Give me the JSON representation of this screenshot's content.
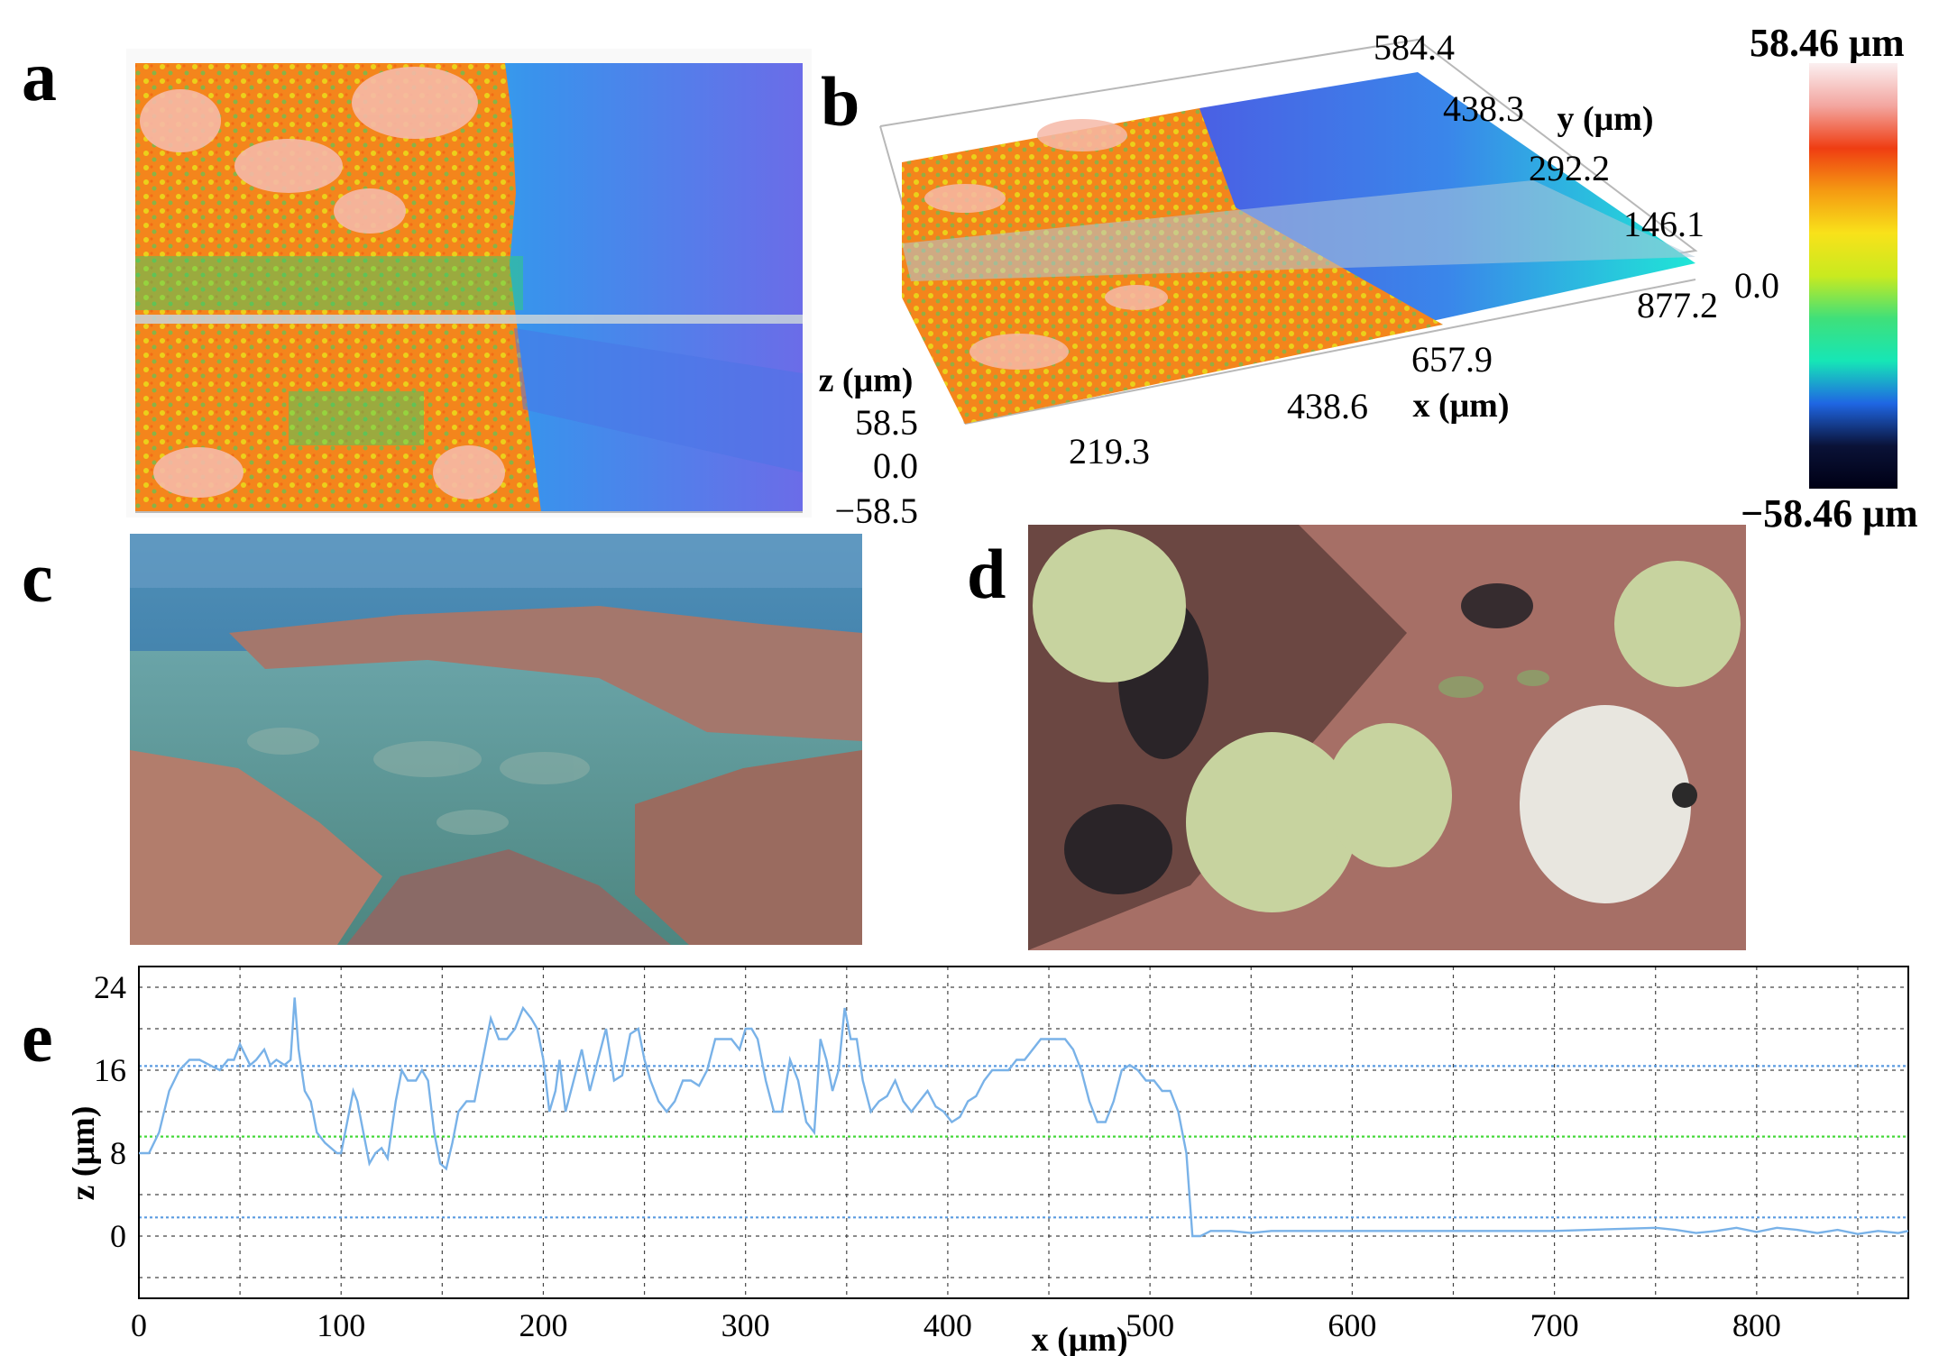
{
  "panels": {
    "a": {
      "letter": "a"
    },
    "b": {
      "letter": "b",
      "y_label": "y (μm)",
      "y_ticks": [
        "584.4",
        "438.3",
        "292.2",
        "146.1",
        "0.0"
      ],
      "x_label": "x (μm)",
      "x_ticks": [
        "877.2",
        "657.9",
        "438.6",
        "219.3"
      ],
      "z_label": "z (μm)",
      "z_ticks": [
        "58.5",
        "0.0",
        "−58.5"
      ]
    },
    "c": {
      "letter": "c"
    },
    "d": {
      "letter": "d"
    },
    "e": {
      "letter": "e"
    }
  },
  "colorbar": {
    "max_label": "58.46 μm",
    "min_label": "−58.46 μm",
    "colors": [
      "#fbeff0",
      "#f3a6a0",
      "#ef3d12",
      "#f59a12",
      "#f8e21a",
      "#c9ea1f",
      "#3fe07a",
      "#16e6b6",
      "#1f66e3",
      "#0a1237",
      "#000015"
    ]
  },
  "chart_data": {
    "type": "line",
    "xlabel": "x (μm)",
    "ylabel": "z (μm)",
    "xlim": [
      0,
      875
    ],
    "ylim": [
      -6,
      26
    ],
    "xticks": [
      0,
      100,
      200,
      300,
      400,
      500,
      600,
      700,
      800
    ],
    "yticks": [
      0,
      8,
      16,
      24
    ],
    "grid": true,
    "line_color": "#79b2e8",
    "reference_lines": [
      {
        "y": 16.4,
        "color": "#5a9be0"
      },
      {
        "y": 9.6,
        "color": "#45d83a"
      },
      {
        "y": 1.8,
        "color": "#5a9be0"
      }
    ],
    "series": [
      {
        "x": [
          0,
          5,
          10,
          15,
          20,
          25,
          30,
          35,
          40,
          44,
          47,
          50,
          55,
          58,
          62,
          65,
          68,
          72,
          75,
          77,
          79,
          82,
          85,
          88,
          92,
          95,
          98,
          100,
          103,
          106,
          108,
          111,
          114,
          117,
          120,
          123,
          127,
          130,
          133,
          137,
          140,
          143,
          146,
          149,
          152,
          155,
          158,
          162,
          166,
          170,
          174,
          178,
          182,
          186,
          190,
          194,
          197,
          200,
          203,
          206,
          208,
          211,
          215,
          219,
          223,
          227,
          231,
          235,
          239,
          243,
          247,
          250,
          253,
          257,
          261,
          265,
          269,
          273,
          277,
          281,
          285,
          289,
          293,
          297,
          300,
          303,
          306,
          310,
          314,
          318,
          322,
          326,
          330,
          334,
          337,
          340,
          343,
          346,
          349,
          352,
          355,
          358,
          362,
          366,
          370,
          374,
          378,
          382,
          386,
          390,
          394,
          398,
          402,
          406,
          410,
          414,
          418,
          422,
          426,
          430,
          434,
          438,
          442,
          446,
          450,
          454,
          458,
          462,
          466,
          470,
          474,
          478,
          482,
          486,
          490,
          494,
          498,
          502,
          506,
          510,
          514,
          518,
          521,
          523,
          525,
          530,
          540,
          550,
          560,
          570,
          600,
          650,
          700,
          750,
          760,
          770,
          780,
          790,
          800,
          810,
          820,
          830,
          840,
          850,
          860,
          870,
          875
        ],
        "y": [
          8,
          8,
          10,
          14,
          16,
          17,
          17,
          16.5,
          16,
          17,
          17,
          18.5,
          16.5,
          17,
          18,
          16.5,
          17,
          16.5,
          17,
          23,
          18,
          14,
          13,
          10,
          9,
          8.5,
          8,
          8,
          11,
          14,
          13,
          10,
          7,
          8,
          8.5,
          7.5,
          13,
          16,
          15,
          15,
          16,
          15,
          10,
          7,
          6.5,
          9,
          12,
          13,
          13,
          17,
          21,
          19,
          19,
          20,
          22,
          21,
          20,
          17,
          12,
          14,
          17,
          12,
          15,
          18,
          14,
          17,
          20,
          15,
          15.5,
          19.5,
          20,
          17,
          15,
          13,
          12,
          13,
          15,
          15,
          14.5,
          16,
          19,
          19,
          19,
          18,
          20,
          20,
          19,
          15,
          12,
          12,
          17,
          15,
          11,
          10,
          19,
          17,
          14,
          16,
          22,
          19,
          19,
          15,
          12,
          13,
          13.5,
          15,
          13,
          12,
          13,
          14,
          12.5,
          12,
          11,
          11.5,
          13,
          13.5,
          15,
          16,
          16,
          16,
          17,
          17,
          18,
          19,
          19,
          19,
          19,
          18,
          16,
          13,
          11,
          11,
          13,
          16,
          16.5,
          16,
          15,
          15,
          14,
          14,
          12,
          8,
          0,
          0,
          0,
          0.5,
          0.5,
          0.3,
          0.5,
          0.5,
          0.5,
          0.5,
          0.5,
          0.8,
          0.6,
          0.3,
          0.5,
          0.8,
          0.4,
          0.8,
          0.6,
          0.3,
          0.6,
          0.2,
          0.5,
          0.3,
          0.5
        ]
      }
    ]
  }
}
